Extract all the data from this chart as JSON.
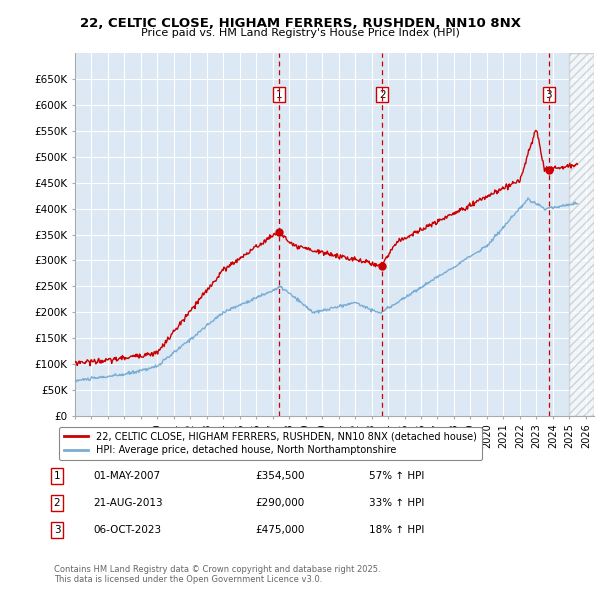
{
  "title_line1": "22, CELTIC CLOSE, HIGHAM FERRERS, RUSHDEN, NN10 8NX",
  "title_line2": "Price paid vs. HM Land Registry's House Price Index (HPI)",
  "background_color": "#ffffff",
  "plot_bg_color": "#dce9f5",
  "grid_color": "#ffffff",
  "ylim": [
    0,
    700000
  ],
  "yticks": [
    0,
    50000,
    100000,
    150000,
    200000,
    250000,
    300000,
    350000,
    400000,
    450000,
    500000,
    550000,
    600000,
    650000
  ],
  "ytick_labels": [
    "£0",
    "£50K",
    "£100K",
    "£150K",
    "£200K",
    "£250K",
    "£300K",
    "£350K",
    "£400K",
    "£450K",
    "£500K",
    "£550K",
    "£600K",
    "£650K"
  ],
  "xmin": 1995.0,
  "xmax": 2026.5,
  "sale_dates": [
    2007.37,
    2013.64,
    2023.76
  ],
  "sale_prices": [
    354500,
    290000,
    475000
  ],
  "sale_labels": [
    "1",
    "2",
    "3"
  ],
  "sale_info": [
    {
      "label": "1",
      "date": "01-MAY-2007",
      "price": "£354,500",
      "hpi": "57% ↑ HPI"
    },
    {
      "label": "2",
      "date": "21-AUG-2013",
      "price": "£290,000",
      "hpi": "33% ↑ HPI"
    },
    {
      "label": "3",
      "date": "06-OCT-2023",
      "price": "£475,000",
      "hpi": "18% ↑ HPI"
    }
  ],
  "red_line_color": "#cc0000",
  "blue_line_color": "#7aadd4",
  "sale_marker_color": "#cc0000",
  "dashed_line_color": "#cc0000",
  "legend_label_red": "22, CELTIC CLOSE, HIGHAM FERRERS, RUSHDEN, NN10 8NX (detached house)",
  "legend_label_blue": "HPI: Average price, detached house, North Northamptonshire",
  "footer_text": "Contains HM Land Registry data © Crown copyright and database right 2025.\nThis data is licensed under the Open Government Licence v3.0.",
  "hatch_region_start": 2025.0,
  "hatch_region_end": 2026.5
}
